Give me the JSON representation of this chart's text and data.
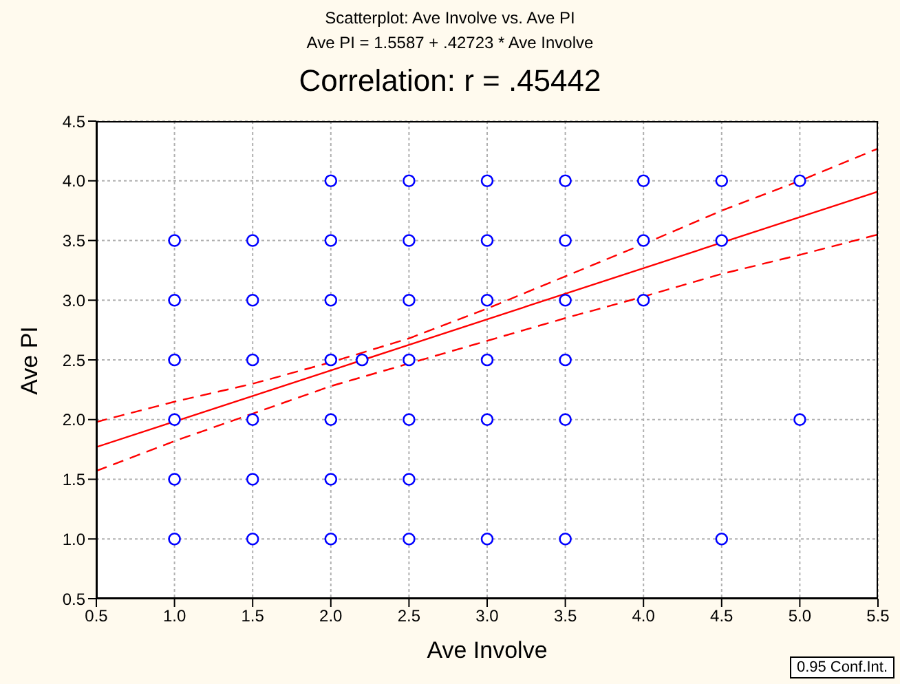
{
  "chart_data": {
    "type": "scatter",
    "title": "Scatterplot: Ave Involve vs. Ave PI",
    "subtitle": "Ave PI = 1.5587 + .42723 * Ave Involve",
    "xlabel": "Ave Involve",
    "ylabel": "Ave PI",
    "annotations": [
      "Correlation: r = .45442",
      "0.95 Conf.Int."
    ],
    "xlim": [
      0.5,
      5.5
    ],
    "ylim": [
      0.5,
      4.5
    ],
    "xticks": [
      0.5,
      {
        "value": 1,
        "label": "1.0"
      },
      1.5,
      {
        "value": 2,
        "label": "2.0"
      },
      2.5,
      {
        "value": 3,
        "label": "3.0"
      },
      3.5,
      {
        "value": 4,
        "label": "4.0"
      },
      4.5,
      {
        "value": 5,
        "label": "5.0"
      },
      5.5
    ],
    "yticks": [
      0.5,
      {
        "value": 1,
        "label": "1.0"
      },
      1.5,
      {
        "value": 2,
        "label": "2.0"
      },
      2.5,
      {
        "value": 3,
        "label": "3.0"
      },
      3.5,
      {
        "value": 4,
        "label": "4.0"
      },
      4.5
    ],
    "grid": true,
    "series": [
      {
        "color": "#0000ff",
        "marker": "circle",
        "x": [
          1,
          1,
          1,
          1,
          1,
          1,
          1.5,
          1.5,
          1.5,
          1.5,
          1.5,
          1.5,
          2,
          2,
          2,
          2,
          2,
          2,
          2,
          2.2,
          2.5,
          2.5,
          2.5,
          2.5,
          2.5,
          2.5,
          2.5,
          3,
          3,
          3,
          3,
          3,
          3,
          3.5,
          3.5,
          3.5,
          3.5,
          3.5,
          3.5,
          4,
          4,
          4,
          4.5,
          4.5,
          4.5,
          5,
          5
        ],
        "values": [
          1,
          1.5,
          2,
          2.5,
          3,
          3.5,
          1,
          1.5,
          2,
          2.5,
          3,
          3.5,
          1,
          1.5,
          2,
          2.5,
          3,
          3.5,
          4,
          2.5,
          1,
          1.5,
          2,
          2.5,
          3,
          3.5,
          4,
          1,
          2,
          2.5,
          3,
          3.5,
          4,
          1,
          2,
          2.5,
          3,
          3.5,
          4,
          3,
          3.5,
          4,
          1,
          3.5,
          4,
          2,
          4
        ]
      },
      {
        "type": "line",
        "color": "#ff0000",
        "marker": "none",
        "line_style": "solid",
        "x": [
          0.5,
          5.5
        ],
        "values": [
          1.77,
          3.91
        ]
      },
      {
        "type": "line",
        "color": "#ff0000",
        "marker": "none",
        "line_style": "dashed",
        "x": [
          0.5,
          1,
          1.5,
          2,
          2.5,
          3,
          3.5,
          4,
          4.5,
          5,
          5.5
        ],
        "values": [
          1.98,
          2.15,
          2.3,
          2.48,
          2.68,
          2.93,
          3.2,
          3.47,
          3.75,
          4.0,
          4.27
        ]
      },
      {
        "type": "line",
        "color": "#ff0000",
        "marker": "none",
        "line_style": "dashed",
        "x": [
          0.5,
          1,
          1.5,
          2,
          2.5,
          3,
          3.5,
          4,
          4.5,
          5,
          5.5
        ],
        "values": [
          1.57,
          1.82,
          2.05,
          2.28,
          2.47,
          2.66,
          2.85,
          3.03,
          3.22,
          3.38,
          3.55
        ]
      }
    ]
  }
}
